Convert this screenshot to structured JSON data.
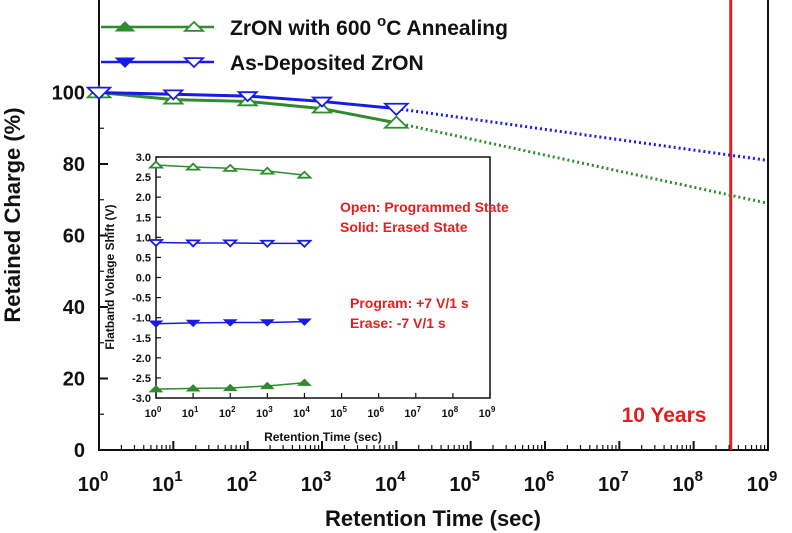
{
  "chart_data": [
    {
      "type": "line",
      "xscale": "log",
      "xlim": [
        1,
        1000000000
      ],
      "ylim": [
        0,
        100
      ],
      "xlabel": "Retention Time (sec)",
      "ylabel": "Retained Charge (%)",
      "x_ticks": [
        {
          "base": "10",
          "exp": "0"
        },
        {
          "base": "10",
          "exp": "1"
        },
        {
          "base": "10",
          "exp": "2"
        },
        {
          "base": "10",
          "exp": "3"
        },
        {
          "base": "10",
          "exp": "4"
        },
        {
          "base": "10",
          "exp": "5"
        },
        {
          "base": "10",
          "exp": "6"
        },
        {
          "base": "10",
          "exp": "7"
        },
        {
          "base": "10",
          "exp": "8"
        },
        {
          "base": "10",
          "exp": "9"
        }
      ],
      "y_ticks": [
        "0",
        "20",
        "40",
        "60",
        "80",
        "100"
      ],
      "legend": {
        "position": "top-left",
        "entries": [
          {
            "label_pre": "ZrON with 600 ",
            "label_sup": "o",
            "label_post": "C Annealing",
            "color": "#2e8b2e",
            "marker": "triangle-up"
          },
          {
            "label_pre": "As-Deposited ZrON",
            "label_sup": "",
            "label_post": "",
            "color": "#1a1ae6",
            "marker": "triangle-down"
          }
        ]
      },
      "series": [
        {
          "color": "#2e8b2e",
          "marker": "triangle-up",
          "x": [
            1,
            10,
            100,
            1000,
            10000
          ],
          "y": [
            100,
            98,
            97.5,
            95.5,
            91.5
          ],
          "extrapolation": {
            "x": [
              10000,
              1000000000
            ],
            "y": [
              91.5,
              69
            ]
          }
        },
        {
          "color": "#1a1ae6",
          "marker": "triangle-down",
          "x": [
            1,
            10,
            100,
            1000,
            10000
          ],
          "y": [
            100,
            99.5,
            99,
            97.5,
            95.5
          ],
          "extrapolation": {
            "x": [
              10000,
              1000000000
            ],
            "y": [
              95.5,
              81
            ]
          }
        }
      ],
      "annotation": {
        "text": "10 Years",
        "x": 315360000,
        "color": "#e02020"
      }
    },
    {
      "type": "line",
      "xscale": "log",
      "xlim": [
        1,
        1000000000
      ],
      "ylim": [
        -3.0,
        3.0
      ],
      "xlabel": "Retention Time (sec)",
      "ylabel": "Flatband Voltage Shift (V)",
      "x_ticks": [
        {
          "base": "10",
          "exp": "0"
        },
        {
          "base": "10",
          "exp": "1"
        },
        {
          "base": "10",
          "exp": "2"
        },
        {
          "base": "10",
          "exp": "3"
        },
        {
          "base": "10",
          "exp": "4"
        },
        {
          "base": "10",
          "exp": "5"
        },
        {
          "base": "10",
          "exp": "6"
        },
        {
          "base": "10",
          "exp": "7"
        },
        {
          "base": "10",
          "exp": "8"
        },
        {
          "base": "10",
          "exp": "9"
        }
      ],
      "y_ticks": [
        "-3.0",
        "-2.5",
        "-2.0",
        "-1.5",
        "-1.0",
        "-0.5",
        "0.0",
        "0.5",
        "1.0",
        "1.5",
        "2.0",
        "2.5",
        "3.0"
      ],
      "annotations": [
        {
          "lines": [
            "Open: Programmed State",
            "Solid: Erased State"
          ],
          "color": "#e02020"
        },
        {
          "lines": [
            "Program: +7 V/1 s",
            "Erase: -7 V/1 s"
          ],
          "color": "#e02020"
        }
      ],
      "series": [
        {
          "color": "#2e8b2e",
          "marker": "triangle-up-open",
          "x": [
            1,
            10,
            100,
            1000,
            10000
          ],
          "y": [
            2.8,
            2.75,
            2.72,
            2.65,
            2.55
          ]
        },
        {
          "color": "#1a1ae6",
          "marker": "triangle-down-open",
          "x": [
            1,
            10,
            100,
            1000,
            10000
          ],
          "y": [
            0.87,
            0.86,
            0.86,
            0.85,
            0.85
          ]
        },
        {
          "color": "#1a1ae6",
          "marker": "triangle-down",
          "x": [
            1,
            10,
            100,
            1000,
            10000
          ],
          "y": [
            -1.15,
            -1.13,
            -1.12,
            -1.12,
            -1.1
          ]
        },
        {
          "color": "#2e8b2e",
          "marker": "triangle-up",
          "x": [
            1,
            10,
            100,
            1000,
            10000
          ],
          "y": [
            -2.78,
            -2.76,
            -2.75,
            -2.7,
            -2.62
          ]
        }
      ]
    }
  ]
}
